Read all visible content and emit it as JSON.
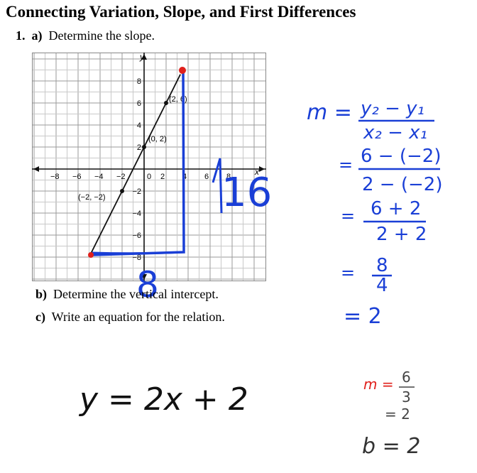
{
  "heading": "Connecting Variation, Slope, and First Differences",
  "question": {
    "number": "1.",
    "part_a_letter": "a)",
    "part_a_text": "Determine the slope.",
    "part_b_letter": "b)",
    "part_b_text": "Determine the vertical intercept.",
    "part_c_letter": "c)",
    "part_c_text": "Write an equation for the relation."
  },
  "graph": {
    "x_axis_label": "x",
    "y_axis_label": "y",
    "x_ticks": [
      "−8",
      "−6",
      "−4",
      "−2",
      "0",
      "2",
      "4",
      "6",
      "8"
    ],
    "y_ticks": [
      "8",
      "6",
      "4",
      "2",
      "−2",
      "−4",
      "−6",
      "−8"
    ],
    "point_labels": [
      "(2, 6)",
      "(0, 2)",
      "(−2, −2)"
    ],
    "line_points": [
      [
        -5,
        -8
      ],
      [
        3.3,
        8.6
      ]
    ],
    "marked_points": [
      [
        2,
        6
      ],
      [
        0,
        2
      ],
      [
        -2,
        -2
      ]
    ],
    "ink_color": "#1a3fd6",
    "red_color": "#e0201c"
  },
  "handwriting": {
    "rise_annotation": "16",
    "run_annotation": "8",
    "formula_m": "m =",
    "formula_num": "y₂ − y₁",
    "formula_den": "x₂ − x₁",
    "sub1_num": "6 − (−2)",
    "sub1_den": "2 − (−2)",
    "sub2_num": "6 + 2",
    "sub2_den": "2 + 2",
    "sub3_num": "8",
    "sub3_den": "4",
    "result": "= 2",
    "equals": "=",
    "equation": "y = 2x + 2",
    "alt_m": "m =",
    "alt_num": "6",
    "alt_den": "3",
    "alt_result": "= 2",
    "b_value": "b = 2"
  }
}
